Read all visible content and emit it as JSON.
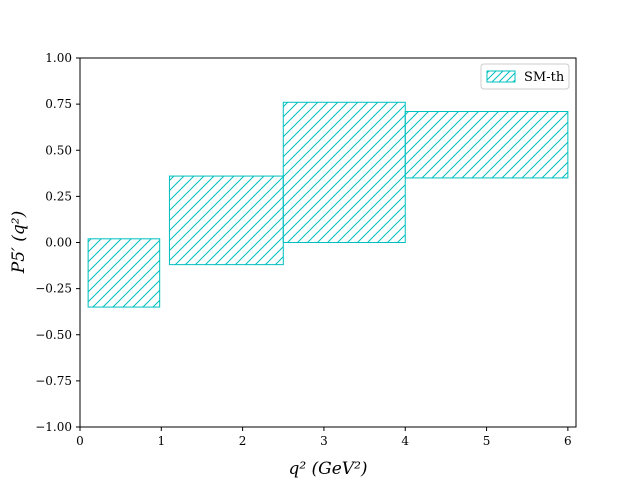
{
  "chart_data": {
    "type": "bar",
    "xlabel": "q² (GeV²)",
    "ylabel": "P5′ (q²)",
    "xlim": [
      0,
      6.1
    ],
    "ylim": [
      -1.0,
      1.0
    ],
    "x_ticks": [
      0,
      1,
      2,
      3,
      4,
      5,
      6
    ],
    "x_tick_labels": [
      "0",
      "1",
      "2",
      "3",
      "4",
      "5",
      "6"
    ],
    "y_ticks": [
      -1.0,
      -0.75,
      -0.5,
      -0.25,
      0.0,
      0.25,
      0.5,
      0.75,
      1.0
    ],
    "y_tick_labels": [
      "−1.00",
      "−0.75",
      "−0.50",
      "−0.25",
      "0.00",
      "0.25",
      "0.50",
      "0.75",
      "1.00"
    ],
    "grid": false,
    "legend": {
      "position": "top-right",
      "entries": [
        "SM-th"
      ]
    },
    "series": [
      {
        "name": "SM-th",
        "color": "#00bfbf",
        "hatch": "diagonal",
        "bins": [
          {
            "x_low": 0.1,
            "x_high": 0.98,
            "y_low": -0.35,
            "y_high": 0.02
          },
          {
            "x_low": 1.1,
            "x_high": 2.5,
            "y_low": -0.12,
            "y_high": 0.36
          },
          {
            "x_low": 2.5,
            "x_high": 4.0,
            "y_low": 0.0,
            "y_high": 0.76
          },
          {
            "x_low": 4.0,
            "x_high": 6.0,
            "y_low": 0.35,
            "y_high": 0.71
          }
        ]
      }
    ]
  }
}
